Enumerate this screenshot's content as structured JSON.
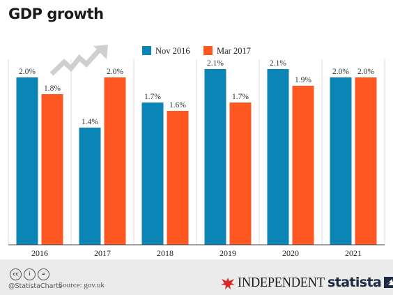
{
  "title": "GDP growth",
  "chart_data": {
    "type": "bar",
    "categories": [
      "2016",
      "2017",
      "2018",
      "2019",
      "2020",
      "2021"
    ],
    "series": [
      {
        "name": "Nov 2016",
        "color": "#0b84b6",
        "values": [
          2.0,
          1.4,
          1.7,
          2.1,
          2.1,
          2.0
        ],
        "labels": [
          "2.0%",
          "1.4%",
          "1.7%",
          "2.1%",
          "2.1%",
          "2.0%"
        ]
      },
      {
        "name": "Mar 2017",
        "color": "#fe5722",
        "values": [
          1.8,
          2.0,
          1.6,
          1.7,
          1.9,
          2.0
        ],
        "labels": [
          "1.8%",
          "2.0%",
          "1.6%",
          "1.7%",
          "1.9%",
          "2.0%"
        ]
      }
    ],
    "ylim": [
      0,
      2.2
    ],
    "grid": true,
    "legend": "top-center"
  },
  "footer": {
    "cc_icons": [
      "cc-icon",
      "by-icon",
      "equals-icon"
    ],
    "cc_text": [
      "cc",
      "i",
      "="
    ],
    "handle": "@StatistaCharts",
    "source": "Source: gov.uk",
    "independent": "INDEPENDENT",
    "statista": "statista"
  }
}
